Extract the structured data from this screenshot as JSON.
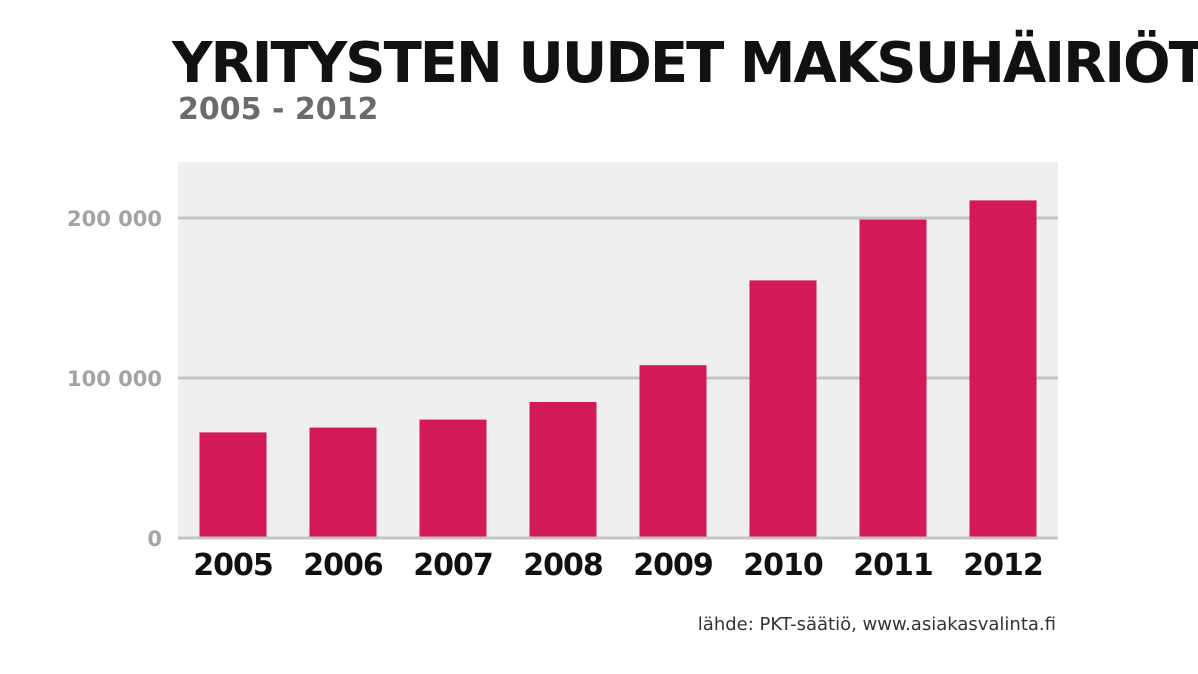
{
  "chart_data": {
    "type": "bar",
    "title": "YRITYSTEN UUDET MAKSUHÄIRIÖT",
    "subtitle": "2005 - 2012",
    "categories": [
      "2005",
      "2006",
      "2007",
      "2008",
      "2009",
      "2010",
      "2011",
      "2012"
    ],
    "values": [
      66000,
      69000,
      74000,
      85000,
      108000,
      161000,
      199000,
      211000
    ],
    "ylim": [
      0,
      235000
    ],
    "yticks": [
      0,
      100000,
      200000
    ],
    "ytick_labels": [
      "0",
      "100 000",
      "200 000"
    ],
    "grid": true,
    "source": "lähde: PKT-säätiö, www.asiakasvalinta.fi",
    "colors": {
      "bar": "#d31957",
      "plot_bg": "#efefef",
      "grid": "#c4c4c4",
      "tick_label": "#a3a3a3",
      "category_label": "#111111"
    }
  }
}
